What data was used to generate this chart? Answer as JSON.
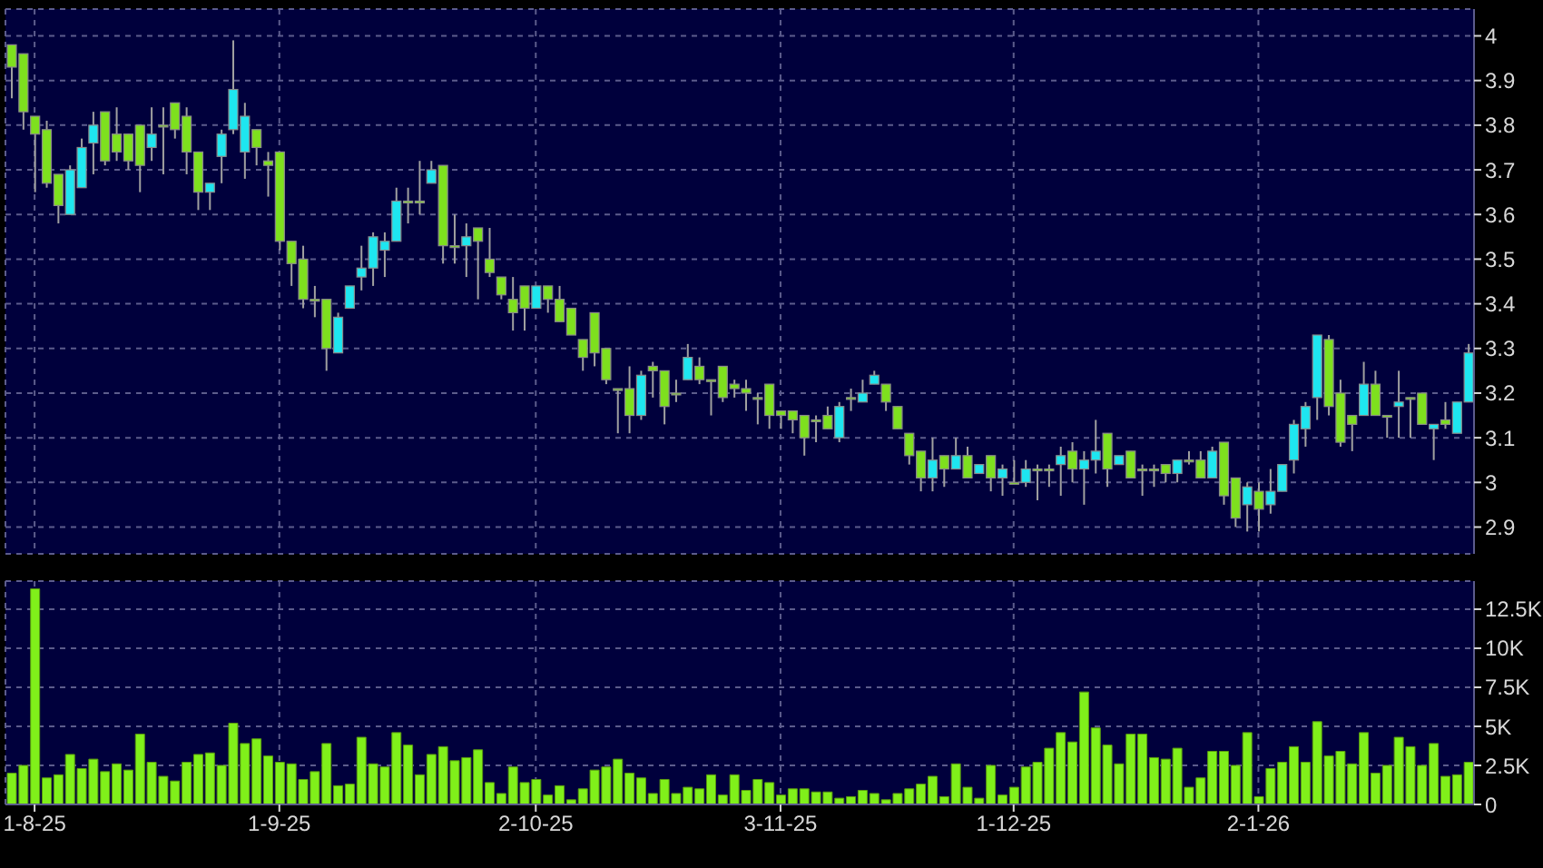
{
  "chart_data": [
    {
      "type": "candlestick",
      "tick_labels": "y",
      "grid": true,
      "ylim": [
        2.84,
        4.06
      ],
      "yticks": [
        2.9,
        3,
        3.1,
        3.2,
        3.3,
        3.4,
        3.5,
        3.6,
        3.7,
        3.8,
        3.9,
        4
      ],
      "categories": [
        null,
        null,
        null,
        null,
        null,
        null,
        null,
        null,
        null,
        null,
        null,
        null,
        null,
        null,
        null,
        null,
        null,
        null,
        null,
        null,
        null,
        null,
        null,
        null,
        null,
        null,
        null,
        null,
        null,
        null,
        null,
        null,
        null,
        null,
        null,
        null,
        null,
        null,
        null,
        null,
        null,
        null,
        null,
        null,
        null,
        null,
        null,
        null,
        null,
        null,
        null,
        null,
        null,
        null,
        null,
        null,
        null,
        null,
        null,
        null,
        null,
        null,
        null,
        null,
        null,
        null,
        null,
        null,
        null,
        null,
        null,
        null,
        null,
        null,
        null,
        null,
        null,
        null,
        null,
        null,
        null,
        null,
        null,
        null,
        null,
        null,
        null,
        null,
        null,
        null,
        null,
        null,
        null,
        null,
        null,
        null,
        null,
        null,
        null,
        null,
        null,
        null,
        null,
        null,
        null,
        null,
        null,
        null,
        null,
        null,
        null,
        null,
        null,
        null,
        null,
        null,
        null,
        null,
        null,
        null,
        null,
        null,
        null,
        null,
        null,
        null
      ],
      "ohlc": [
        [
          3.98,
          3.98,
          3.86,
          3.93
        ],
        [
          3.96,
          3.96,
          3.79,
          3.83
        ],
        [
          3.82,
          3.82,
          3.65,
          3.78
        ],
        [
          3.79,
          3.81,
          3.66,
          3.67
        ],
        [
          3.69,
          3.69,
          3.58,
          3.62
        ],
        [
          3.6,
          3.71,
          3.6,
          3.7
        ],
        [
          3.66,
          3.77,
          3.66,
          3.75
        ],
        [
          3.76,
          3.83,
          3.69,
          3.8
        ],
        [
          3.83,
          3.83,
          3.71,
          3.72
        ],
        [
          3.78,
          3.84,
          3.72,
          3.74
        ],
        [
          3.78,
          3.78,
          3.7,
          3.72
        ],
        [
          3.8,
          3.8,
          3.65,
          3.71
        ],
        [
          3.75,
          3.84,
          3.72,
          3.78
        ],
        [
          3.8,
          3.84,
          3.69,
          3.8
        ],
        [
          3.85,
          3.85,
          3.77,
          3.79
        ],
        [
          3.82,
          3.84,
          3.69,
          3.74
        ],
        [
          3.74,
          3.74,
          3.61,
          3.65
        ],
        [
          3.65,
          3.67,
          3.61,
          3.67
        ],
        [
          3.73,
          3.79,
          3.67,
          3.78
        ],
        [
          3.79,
          3.99,
          3.78,
          3.88
        ],
        [
          3.74,
          3.85,
          3.68,
          3.82
        ],
        [
          3.79,
          3.79,
          3.71,
          3.75
        ],
        [
          3.72,
          3.74,
          3.64,
          3.71
        ],
        [
          3.74,
          3.74,
          3.52,
          3.54
        ],
        [
          3.54,
          3.54,
          3.44,
          3.49
        ],
        [
          3.5,
          3.53,
          3.39,
          3.41
        ],
        [
          3.41,
          3.44,
          3.37,
          3.41
        ],
        [
          3.41,
          3.41,
          3.25,
          3.3
        ],
        [
          3.29,
          3.38,
          3.29,
          3.37
        ],
        [
          3.39,
          3.44,
          3.39,
          3.44
        ],
        [
          3.46,
          3.53,
          3.43,
          3.48
        ],
        [
          3.48,
          3.56,
          3.44,
          3.55
        ],
        [
          3.52,
          3.56,
          3.46,
          3.54
        ],
        [
          3.54,
          3.66,
          3.54,
          3.63
        ],
        [
          3.63,
          3.66,
          3.58,
          3.63
        ],
        [
          3.63,
          3.72,
          3.6,
          3.63
        ],
        [
          3.67,
          3.72,
          3.67,
          3.7
        ],
        [
          3.71,
          3.71,
          3.49,
          3.53
        ],
        [
          3.53,
          3.6,
          3.49,
          3.53
        ],
        [
          3.53,
          3.58,
          3.46,
          3.55
        ],
        [
          3.57,
          3.57,
          3.41,
          3.54
        ],
        [
          3.5,
          3.57,
          3.46,
          3.47
        ],
        [
          3.46,
          3.46,
          3.41,
          3.42
        ],
        [
          3.41,
          3.46,
          3.34,
          3.38
        ],
        [
          3.44,
          3.44,
          3.34,
          3.39
        ],
        [
          3.39,
          3.44,
          3.39,
          3.44
        ],
        [
          3.44,
          3.44,
          3.38,
          3.41
        ],
        [
          3.41,
          3.44,
          3.36,
          3.36
        ],
        [
          3.39,
          3.39,
          3.33,
          3.33
        ],
        [
          3.32,
          3.32,
          3.25,
          3.28
        ],
        [
          3.38,
          3.38,
          3.26,
          3.29
        ],
        [
          3.3,
          3.3,
          3.22,
          3.23
        ],
        [
          3.21,
          3.21,
          3.11,
          3.21
        ],
        [
          3.21,
          3.26,
          3.11,
          3.15
        ],
        [
          3.15,
          3.25,
          3.14,
          3.24
        ],
        [
          3.26,
          3.27,
          3.19,
          3.25
        ],
        [
          3.25,
          3.25,
          3.13,
          3.17
        ],
        [
          3.2,
          3.23,
          3.18,
          3.2
        ],
        [
          3.23,
          3.31,
          3.23,
          3.28
        ],
        [
          3.26,
          3.28,
          3.22,
          3.23
        ],
        [
          3.23,
          3.23,
          3.15,
          3.23
        ],
        [
          3.26,
          3.26,
          3.18,
          3.19
        ],
        [
          3.22,
          3.23,
          3.19,
          3.21
        ],
        [
          3.21,
          3.23,
          3.16,
          3.2
        ],
        [
          3.19,
          3.2,
          3.13,
          3.19
        ],
        [
          3.22,
          3.22,
          3.12,
          3.15
        ],
        [
          3.16,
          3.16,
          3.12,
          3.15
        ],
        [
          3.16,
          3.16,
          3.11,
          3.14
        ],
        [
          3.15,
          3.15,
          3.06,
          3.1
        ],
        [
          3.14,
          3.15,
          3.09,
          3.14
        ],
        [
          3.15,
          3.17,
          3.12,
          3.12
        ],
        [
          3.1,
          3.18,
          3.09,
          3.17
        ],
        [
          3.19,
          3.21,
          3.16,
          3.19
        ],
        [
          3.18,
          3.23,
          3.18,
          3.2
        ],
        [
          3.22,
          3.25,
          3.22,
          3.24
        ],
        [
          3.22,
          3.22,
          3.16,
          3.18
        ],
        [
          3.17,
          3.17,
          3.12,
          3.12
        ],
        [
          3.11,
          3.11,
          3.04,
          3.06
        ],
        [
          3.07,
          3.07,
          2.98,
          3.01
        ],
        [
          3.01,
          3.1,
          2.98,
          3.05
        ],
        [
          3.06,
          3.06,
          2.99,
          3.03
        ],
        [
          3.03,
          3.1,
          3.03,
          3.06
        ],
        [
          3.06,
          3.08,
          3.01,
          3.01
        ],
        [
          3.02,
          3.04,
          3.02,
          3.04
        ],
        [
          3.06,
          3.06,
          2.98,
          3.01
        ],
        [
          3.01,
          3.04,
          2.97,
          3.03
        ],
        [
          3.0,
          3.05,
          3.0,
          3.0
        ],
        [
          3.0,
          3.05,
          2.99,
          3.03
        ],
        [
          3.03,
          3.04,
          2.96,
          3.03
        ],
        [
          3.03,
          3.04,
          2.99,
          3.03
        ],
        [
          3.04,
          3.08,
          2.97,
          3.06
        ],
        [
          3.07,
          3.09,
          3.0,
          3.03
        ],
        [
          3.03,
          3.07,
          2.95,
          3.05
        ],
        [
          3.05,
          3.14,
          3.02,
          3.07
        ],
        [
          3.11,
          3.11,
          2.99,
          3.03
        ],
        [
          3.04,
          3.06,
          3.04,
          3.06
        ],
        [
          3.07,
          3.07,
          3.01,
          3.01
        ],
        [
          3.03,
          3.04,
          2.97,
          3.03
        ],
        [
          3.03,
          3.04,
          2.99,
          3.03
        ],
        [
          3.04,
          3.04,
          3.0,
          3.02
        ],
        [
          3.02,
          3.05,
          3.0,
          3.05
        ],
        [
          3.05,
          3.07,
          3.04,
          3.05
        ],
        [
          3.05,
          3.07,
          3.01,
          3.01
        ],
        [
          3.01,
          3.08,
          3.01,
          3.07
        ],
        [
          3.09,
          3.09,
          2.95,
          2.97
        ],
        [
          3.01,
          3.01,
          2.9,
          2.92
        ],
        [
          2.95,
          3.0,
          2.89,
          2.99
        ],
        [
          2.98,
          3.0,
          2.89,
          2.94
        ],
        [
          2.95,
          3.03,
          2.93,
          2.98
        ],
        [
          2.98,
          3.04,
          2.98,
          3.04
        ],
        [
          3.05,
          3.14,
          3.02,
          3.13
        ],
        [
          3.12,
          3.18,
          3.08,
          3.17
        ],
        [
          3.19,
          3.33,
          3.14,
          3.33
        ],
        [
          3.32,
          3.33,
          3.15,
          3.17
        ],
        [
          3.2,
          3.23,
          3.08,
          3.09
        ],
        [
          3.15,
          3.15,
          3.07,
          3.13
        ],
        [
          3.15,
          3.27,
          3.15,
          3.22
        ],
        [
          3.22,
          3.25,
          3.15,
          3.15
        ],
        [
          3.15,
          3.15,
          3.1,
          3.15
        ],
        [
          3.17,
          3.25,
          3.1,
          3.18
        ],
        [
          3.19,
          3.19,
          3.1,
          3.19
        ],
        [
          3.2,
          3.2,
          3.13,
          3.13
        ],
        [
          3.12,
          3.13,
          3.05,
          3.13
        ],
        [
          3.14,
          3.18,
          3.12,
          3.13
        ],
        [
          3.11,
          3.18,
          3.11,
          3.18
        ],
        [
          3.18,
          3.31,
          3.18,
          3.29
        ]
      ],
      "colors": [
        "#7ee01e",
        "#7ee01e",
        "#7ee01e",
        "#7ee01e",
        "#7ee01e",
        "#1ee6f0",
        "#1ee6f0",
        "#1ee6f0",
        "#7ee01e",
        "#7ee01e",
        "#7ee01e",
        "#7ee01e",
        "#1ee6f0",
        "#7ee01e",
        "#7ee01e",
        "#7ee01e",
        "#7ee01e",
        "#1ee6f0",
        "#1ee6f0",
        "#1ee6f0",
        "#1ee6f0",
        "#7ee01e",
        "#7ee01e",
        "#7ee01e",
        "#7ee01e",
        "#7ee01e",
        "#7ee01e",
        "#7ee01e",
        "#1ee6f0",
        "#1ee6f0",
        "#1ee6f0",
        "#1ee6f0",
        "#1ee6f0",
        "#1ee6f0",
        "#7ee01e",
        "#7ee01e",
        "#1ee6f0",
        "#7ee01e",
        "#7ee01e",
        "#1ee6f0",
        "#7ee01e",
        "#7ee01e",
        "#7ee01e",
        "#7ee01e",
        "#7ee01e",
        "#1ee6f0",
        "#7ee01e",
        "#7ee01e",
        "#7ee01e",
        "#7ee01e",
        "#7ee01e",
        "#7ee01e",
        "#7ee01e",
        "#7ee01e",
        "#1ee6f0",
        "#7ee01e",
        "#7ee01e",
        "#7ee01e",
        "#1ee6f0",
        "#7ee01e",
        "#7ee01e",
        "#7ee01e",
        "#7ee01e",
        "#7ee01e",
        "#7ee01e",
        "#7ee01e",
        "#7ee01e",
        "#7ee01e",
        "#7ee01e",
        "#7ee01e",
        "#7ee01e",
        "#1ee6f0",
        "#7ee01e",
        "#1ee6f0",
        "#1ee6f0",
        "#7ee01e",
        "#7ee01e",
        "#7ee01e",
        "#7ee01e",
        "#1ee6f0",
        "#7ee01e",
        "#1ee6f0",
        "#7ee01e",
        "#1ee6f0",
        "#7ee01e",
        "#1ee6f0",
        "#7ee01e",
        "#1ee6f0",
        "#7ee01e",
        "#7ee01e",
        "#1ee6f0",
        "#7ee01e",
        "#1ee6f0",
        "#1ee6f0",
        "#7ee01e",
        "#1ee6f0",
        "#7ee01e",
        "#7ee01e",
        "#7ee01e",
        "#7ee01e",
        "#1ee6f0",
        "#7ee01e",
        "#7ee01e",
        "#1ee6f0",
        "#7ee01e",
        "#7ee01e",
        "#1ee6f0",
        "#7ee01e",
        "#1ee6f0",
        "#1ee6f0",
        "#1ee6f0",
        "#1ee6f0",
        "#1ee6f0",
        "#7ee01e",
        "#7ee01e",
        "#7ee01e",
        "#1ee6f0",
        "#7ee01e",
        "#7ee01e",
        "#1ee6f0",
        "#7ee01e",
        "#7ee01e",
        "#1ee6f0",
        "#7ee01e",
        "#1ee6f0",
        "#1ee6f0"
      ]
    },
    {
      "type": "bar",
      "grid": true,
      "color": "#80f01a",
      "ylim": [
        0,
        14300
      ],
      "yticks": [
        0,
        {
          "value": 2500,
          "label": "2.5K"
        },
        {
          "value": 5000,
          "label": "5K"
        },
        {
          "value": 7500,
          "label": "7.5K"
        },
        {
          "value": 10000,
          "label": "10K"
        },
        {
          "value": 12500,
          "label": "12.5K"
        }
      ],
      "categories": [
        null,
        null,
        "1-8-25",
        null,
        null,
        null,
        null,
        null,
        null,
        null,
        null,
        null,
        null,
        null,
        null,
        null,
        null,
        null,
        null,
        null,
        null,
        null,
        null,
        "1-9-25",
        null,
        null,
        null,
        null,
        null,
        null,
        null,
        null,
        null,
        null,
        null,
        null,
        null,
        null,
        null,
        null,
        null,
        null,
        null,
        null,
        null,
        "2-10-25",
        null,
        null,
        null,
        null,
        null,
        null,
        null,
        null,
        null,
        null,
        null,
        null,
        null,
        null,
        null,
        null,
        null,
        null,
        null,
        null,
        "3-11-25",
        null,
        null,
        null,
        null,
        null,
        null,
        null,
        null,
        null,
        null,
        null,
        null,
        null,
        null,
        null,
        null,
        null,
        null,
        null,
        "1-12-25",
        null,
        null,
        null,
        null,
        null,
        null,
        null,
        null,
        null,
        null,
        null,
        null,
        null,
        null,
        null,
        null,
        null,
        null,
        null,
        null,
        "2-1-26",
        null,
        null,
        null,
        null,
        null,
        null,
        null,
        null,
        null,
        null,
        null,
        null,
        null,
        null,
        null,
        null,
        null,
        null
      ],
      "values": [
        2000,
        2500,
        13800,
        1700,
        1900,
        3200,
        2300,
        2900,
        2100,
        2600,
        2200,
        4500,
        2700,
        1800,
        1500,
        2700,
        3200,
        3300,
        2500,
        5200,
        3900,
        4200,
        3100,
        2700,
        2600,
        1600,
        2100,
        3900,
        1200,
        1300,
        4300,
        2600,
        2400,
        4600,
        3800,
        1900,
        3200,
        3700,
        2800,
        3000,
        3500,
        1400,
        700,
        2400,
        1400,
        1600,
        600,
        1200,
        300,
        1000,
        2200,
        2400,
        2900,
        2000,
        1700,
        700,
        1600,
        700,
        1100,
        1000,
        1900,
        600,
        1900,
        900,
        1600,
        1400,
        600,
        1000,
        1000,
        800,
        800,
        400,
        500,
        900,
        700,
        300,
        700,
        1000,
        1300,
        1800,
        500,
        2600,
        1100,
        400,
        2500,
        600,
        1100,
        2400,
        2700,
        3600,
        4600,
        4000,
        7200,
        4900,
        3800,
        2600,
        4500,
        4500,
        3000,
        2900,
        3600,
        1100,
        1700,
        3400,
        3400,
        2500,
        4600,
        500,
        2300,
        2700,
        3700,
        2700,
        5300,
        3100,
        3400,
        2600,
        4600,
        2000,
        2500,
        4300,
        3700,
        2500,
        3900,
        1800,
        1900,
        2700
      ]
    }
  ]
}
